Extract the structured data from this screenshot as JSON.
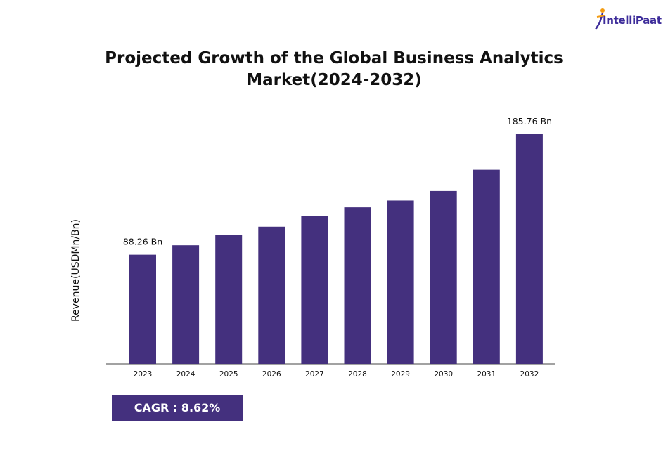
{
  "brand": {
    "name": "IntelliPaat"
  },
  "colors": {
    "bar": "#44307e",
    "logo": "#3d2c9a",
    "logo_accent": "#f39c12"
  },
  "cagr": {
    "label": "CAGR : 8.62%"
  },
  "chart_data": {
    "type": "bar",
    "title": "Projected Growth of the Global Business Analytics Market(2024-2032)",
    "ylabel": "Revenue(USDMn/Bn)",
    "xlabel": "",
    "categories": [
      "2023",
      "2024",
      "2025",
      "2026",
      "2027",
      "2028",
      "2029",
      "2030",
      "2031",
      "2032"
    ],
    "values": [
      88.26,
      95.9,
      104.1,
      110.9,
      119.4,
      126.6,
      132.1,
      139.8,
      157.0,
      185.76
    ],
    "data_labels": {
      "0": "88.26 Bn",
      "9": "185.76 Bn"
    },
    "ylim": [
      0,
      185.76
    ],
    "grid": false,
    "legend": "none"
  }
}
